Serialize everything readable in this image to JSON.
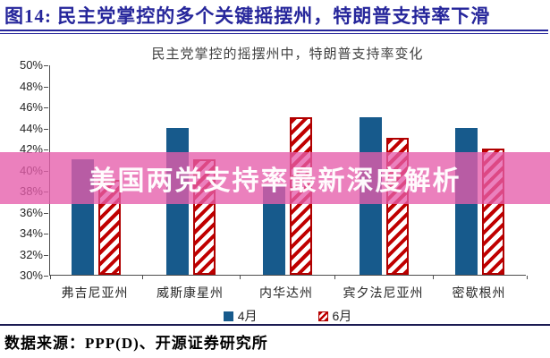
{
  "header": {
    "title": "图14:  民主党掌控的多个关键摇摆州，特朗普支持率下滑",
    "accent_color": "#26269b"
  },
  "chart_data": {
    "type": "bar",
    "title": "民主党掌控的摇摆州中，特朗普支持率变化",
    "categories": [
      "弗吉尼亚州",
      "威斯康星州",
      "内华达州",
      "宾夕法尼亚州",
      "密歇根州"
    ],
    "series": [
      {
        "name": "4月",
        "style": "solid",
        "color": "#175a8c",
        "values": [
          41,
          44,
          38.5,
          45,
          44
        ]
      },
      {
        "name": "6月",
        "style": "diagonal-hatch",
        "color": "#c00000",
        "values": [
          39,
          41,
          45,
          43,
          42
        ]
      }
    ],
    "ylim": [
      30,
      50
    ],
    "ytick_labels": [
      "50%",
      "48%",
      "46%",
      "44%",
      "42%",
      "40%",
      "38%",
      "36%",
      "34%",
      "32%",
      "30%"
    ],
    "grid": false,
    "legend_position": "bottom"
  },
  "watermark": {
    "text": "美国两党支持率最新深度解析",
    "band_color": "#e65cab"
  },
  "footer": {
    "source": "数据来源：PPP(D)、开源证券研究所"
  }
}
